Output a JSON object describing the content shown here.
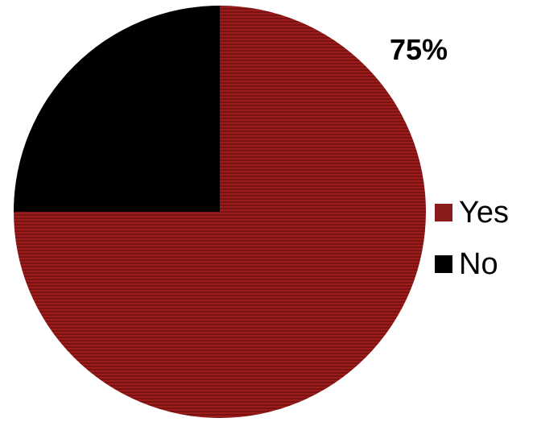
{
  "chart_data": {
    "type": "pie",
    "title": "",
    "categories": [
      "Yes",
      "No"
    ],
    "values": [
      75,
      25
    ],
    "colors": [
      "#8B1A1A",
      "#000000"
    ],
    "data_labels": [
      "75%",
      ""
    ],
    "legend_placement": "right",
    "start_angle_deg": 0,
    "direction": "clockwise",
    "fill_pattern": "horizontal-stripes"
  }
}
